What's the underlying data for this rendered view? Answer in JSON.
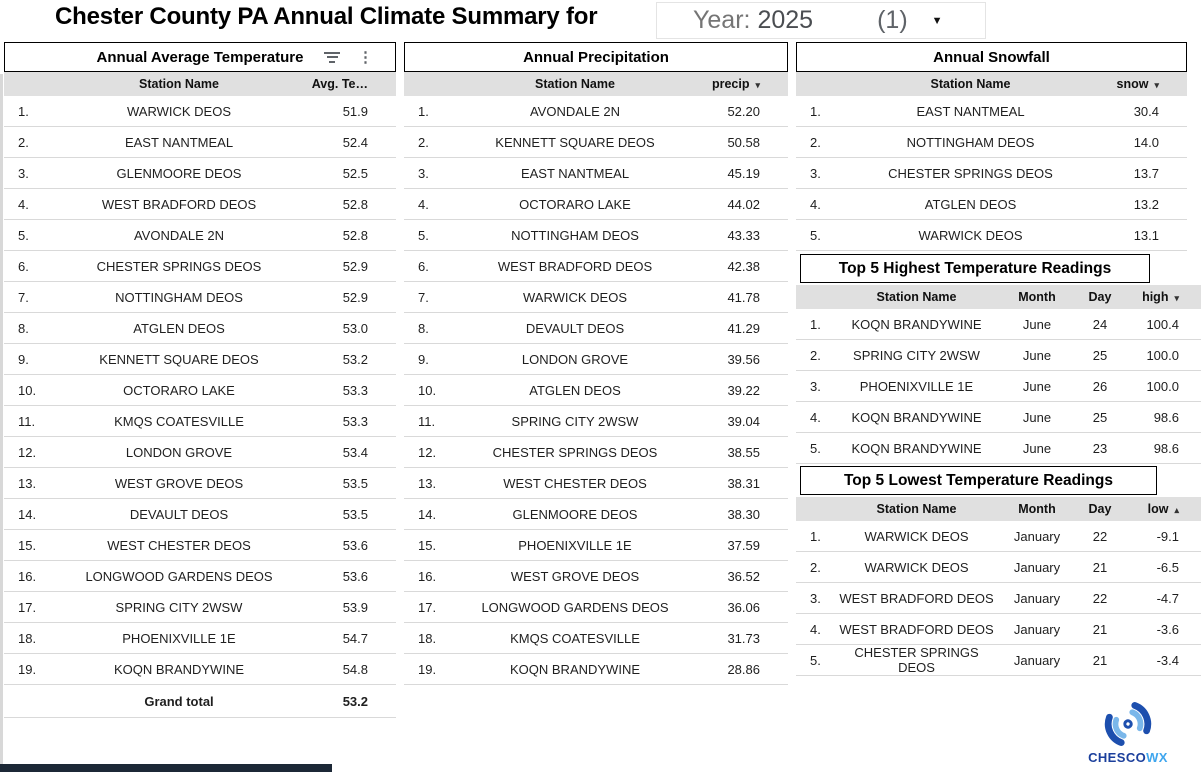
{
  "header": {
    "title": "Chester County PA Annual Climate Summary for",
    "year_label": "Year:",
    "year_value": "2025",
    "year_count": "(1)"
  },
  "icons": {
    "kebab": "⋮",
    "caret_down": "▼"
  },
  "tables": {
    "avg_temp": {
      "title": "Annual Average Temperature",
      "columns": [
        "Station Name",
        "Avg. Te…"
      ],
      "rows": [
        [
          "1.",
          "WARWICK DEOS",
          "51.9"
        ],
        [
          "2.",
          "EAST NANTMEAL",
          "52.4"
        ],
        [
          "3.",
          "GLENMOORE DEOS",
          "52.5"
        ],
        [
          "4.",
          "WEST BRADFORD DEOS",
          "52.8"
        ],
        [
          "5.",
          "AVONDALE 2N",
          "52.8"
        ],
        [
          "6.",
          "CHESTER SPRINGS DEOS",
          "52.9"
        ],
        [
          "7.",
          "NOTTINGHAM DEOS",
          "52.9"
        ],
        [
          "8.",
          "ATGLEN DEOS",
          "53.0"
        ],
        [
          "9.",
          "KENNETT SQUARE DEOS",
          "53.2"
        ],
        [
          "10.",
          "OCTORARO LAKE",
          "53.3"
        ],
        [
          "11.",
          "KMQS COATESVILLE",
          "53.3"
        ],
        [
          "12.",
          "LONDON GROVE",
          "53.4"
        ],
        [
          "13.",
          "WEST GROVE DEOS",
          "53.5"
        ],
        [
          "14.",
          "DEVAULT DEOS",
          "53.5"
        ],
        [
          "15.",
          "WEST CHESTER DEOS",
          "53.6"
        ],
        [
          "16.",
          "LONGWOOD GARDENS DEOS",
          "53.6"
        ],
        [
          "17.",
          "SPRING CITY 2WSW",
          "53.9"
        ],
        [
          "18.",
          "PHOENIXVILLE 1E",
          "54.7"
        ],
        [
          "19.",
          "KOQN BRANDYWINE",
          "54.8"
        ]
      ],
      "total_label": "Grand total",
      "total_value": "53.2"
    },
    "precip": {
      "title": "Annual Precipitation",
      "columns": [
        "Station Name",
        "precip"
      ],
      "sort_glyph": "▾",
      "rows": [
        [
          "1.",
          "AVONDALE 2N",
          "52.20"
        ],
        [
          "2.",
          "KENNETT SQUARE DEOS",
          "50.58"
        ],
        [
          "3.",
          "EAST NANTMEAL",
          "45.19"
        ],
        [
          "4.",
          "OCTORARO LAKE",
          "44.02"
        ],
        [
          "5.",
          "NOTTINGHAM DEOS",
          "43.33"
        ],
        [
          "6.",
          "WEST BRADFORD DEOS",
          "42.38"
        ],
        [
          "7.",
          "WARWICK DEOS",
          "41.78"
        ],
        [
          "8.",
          "DEVAULT DEOS",
          "41.29"
        ],
        [
          "9.",
          "LONDON GROVE",
          "39.56"
        ],
        [
          "10.",
          "ATGLEN DEOS",
          "39.22"
        ],
        [
          "11.",
          "SPRING CITY 2WSW",
          "39.04"
        ],
        [
          "12.",
          "CHESTER SPRINGS DEOS",
          "38.55"
        ],
        [
          "13.",
          "WEST CHESTER DEOS",
          "38.31"
        ],
        [
          "14.",
          "GLENMOORE DEOS",
          "38.30"
        ],
        [
          "15.",
          "PHOENIXVILLE 1E",
          "37.59"
        ],
        [
          "16.",
          "WEST GROVE DEOS",
          "36.52"
        ],
        [
          "17.",
          "LONGWOOD GARDENS DEOS",
          "36.06"
        ],
        [
          "18.",
          "KMQS COATESVILLE",
          "31.73"
        ],
        [
          "19.",
          "KOQN BRANDYWINE",
          "28.86"
        ]
      ]
    },
    "snow": {
      "title": "Annual Snowfall",
      "columns": [
        "Station Name",
        "snow"
      ],
      "sort_glyph": "▾",
      "rows": [
        [
          "1.",
          "EAST NANTMEAL",
          "30.4"
        ],
        [
          "2.",
          "NOTTINGHAM DEOS",
          "14.0"
        ],
        [
          "3.",
          "CHESTER SPRINGS DEOS",
          "13.7"
        ],
        [
          "4.",
          "ATGLEN DEOS",
          "13.2"
        ],
        [
          "5.",
          "WARWICK DEOS",
          "13.1"
        ]
      ]
    },
    "high": {
      "title": "Top 5 Highest Temperature Readings",
      "columns": [
        "Station Name",
        "Month",
        "Day",
        "high"
      ],
      "sort_glyph": "▾",
      "rows": [
        [
          "1.",
          "KOQN BRANDYWINE",
          "June",
          "24",
          "100.4"
        ],
        [
          "2.",
          "SPRING CITY 2WSW",
          "June",
          "25",
          "100.0"
        ],
        [
          "3.",
          "PHOENIXVILLE 1E",
          "June",
          "26",
          "100.0"
        ],
        [
          "4.",
          "KOQN BRANDYWINE",
          "June",
          "25",
          "98.6"
        ],
        [
          "5.",
          "KOQN BRANDYWINE",
          "June",
          "23",
          "98.6"
        ]
      ]
    },
    "low": {
      "title": "Top 5 Lowest Temperature Readings",
      "columns": [
        "Station Name",
        "Month",
        "Day",
        "low"
      ],
      "sort_glyph": "▴",
      "rows": [
        [
          "1.",
          "WARWICK DEOS",
          "January",
          "22",
          "-9.1"
        ],
        [
          "2.",
          "WARWICK DEOS",
          "January",
          "21",
          "-6.5"
        ],
        [
          "3.",
          "WEST BRADFORD DEOS",
          "January",
          "22",
          "-4.7"
        ],
        [
          "4.",
          "WEST BRADFORD DEOS",
          "January",
          "21",
          "-3.6"
        ],
        [
          "5.",
          "CHESTER SPRINGS DEOS",
          "January",
          "21",
          "-3.4"
        ]
      ]
    }
  },
  "logo": {
    "text_primary": "CHESCO",
    "text_secondary": "WX"
  }
}
